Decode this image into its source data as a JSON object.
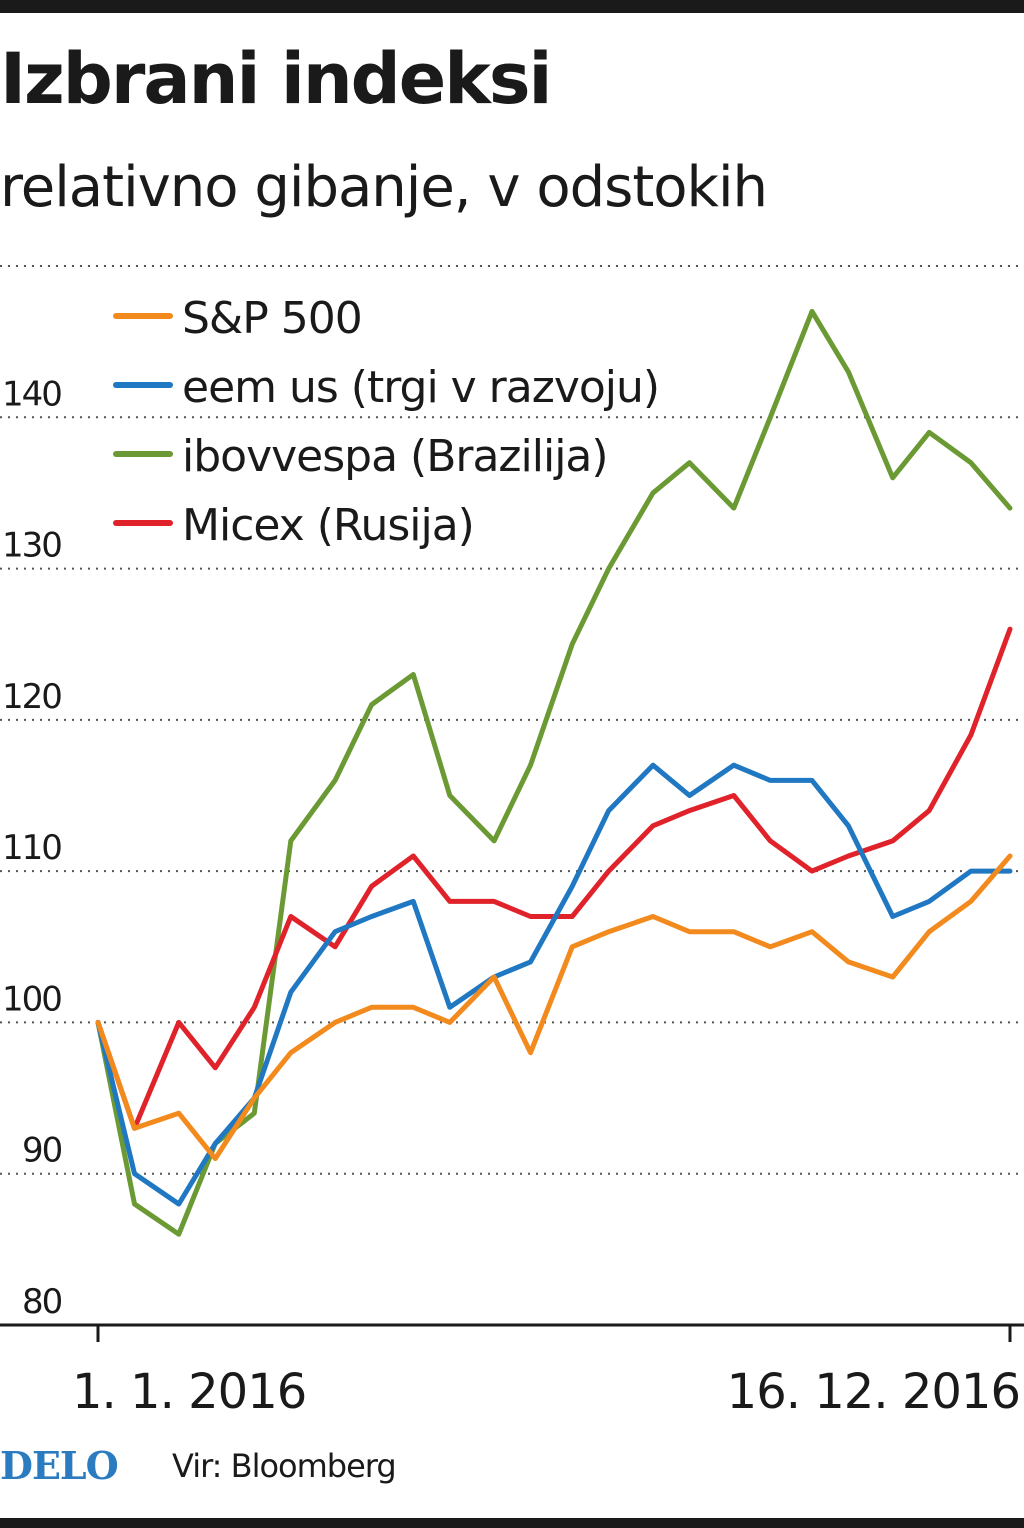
{
  "title": "Izbrani indeksi",
  "subtitle": "relativno gibanje, v odstokih",
  "footer": {
    "brand": "DELO",
    "source": "Vir: Bloomberg"
  },
  "chart_data": {
    "type": "line",
    "title": "Izbrani indeksi",
    "subtitle": "relativno gibanje, v odstokih",
    "x_labels": [
      "1. 1. 2016",
      "16. 12. 2016"
    ],
    "x_range": [
      "2016-01-01",
      "2016-12-16"
    ],
    "ylim": [
      80,
      150
    ],
    "yticks": [
      80,
      90,
      100,
      110,
      120,
      130,
      140
    ],
    "grid": "horizontal dotted",
    "legend_position": "top-left",
    "x": [
      "2016-01-01",
      "2016-01-15",
      "2016-02-01",
      "2016-02-15",
      "2016-03-01",
      "2016-03-15",
      "2016-04-01",
      "2016-04-15",
      "2016-05-01",
      "2016-05-15",
      "2016-06-01",
      "2016-06-15",
      "2016-07-01",
      "2016-07-15",
      "2016-08-01",
      "2016-08-15",
      "2016-09-01",
      "2016-09-15",
      "2016-10-01",
      "2016-10-15",
      "2016-11-01",
      "2016-11-15",
      "2016-12-01",
      "2016-12-16"
    ],
    "series": [
      {
        "name": "S&P 500",
        "color": "#f28a1e",
        "values": [
          100,
          93,
          94,
          91,
          95,
          98,
          100,
          101,
          101,
          100,
          103,
          98,
          105,
          106,
          107,
          106,
          106,
          105,
          106,
          104,
          103,
          106,
          108,
          111
        ]
      },
      {
        "name": "eem us (trgi v razvoju)",
        "color": "#1f78c1",
        "values": [
          100,
          90,
          88,
          92,
          95,
          102,
          106,
          107,
          108,
          101,
          103,
          104,
          109,
          114,
          117,
          115,
          117,
          116,
          116,
          113,
          107,
          108,
          110,
          110
        ]
      },
      {
        "name": "ibovvespa (Brazilija)",
        "color": "#6b9a34",
        "values": [
          100,
          88,
          86,
          92,
          94,
          112,
          116,
          121,
          123,
          115,
          112,
          117,
          125,
          130,
          135,
          137,
          134,
          140,
          147,
          143,
          136,
          139,
          137,
          134
        ]
      },
      {
        "name": "Micex (Rusija)",
        "color": "#e0232b",
        "values": [
          100,
          93,
          100,
          97,
          101,
          107,
          105,
          109,
          111,
          108,
          108,
          107,
          107,
          110,
          113,
          114,
          115,
          112,
          110,
          111,
          112,
          114,
          119,
          126
        ]
      }
    ]
  }
}
